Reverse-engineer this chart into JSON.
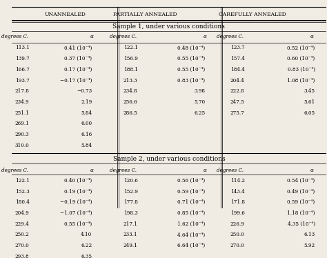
{
  "bg_color": "#f0ece4",
  "header_main": [
    "UNANNEALED",
    "PARTIALLY ANNEALED",
    "CAREFULLY ANNEALED"
  ],
  "col_headers": [
    "degrees C.",
    "α",
    "degrees C.",
    "α",
    "degrees C.",
    "α"
  ],
  "sample1_title": "Sample 1, under various conditions",
  "sample2_title": "Sample 2, under various conditions",
  "sample1": {
    "unannealed": [
      [
        "113.1",
        "0.41 (10⁻⁴)"
      ],
      [
        "139.7",
        "0.37 (10⁻⁴)"
      ],
      [
        "166.7",
        "0.17 (10⁻⁴)"
      ],
      [
        "193.7",
        "−0.17 (10⁻⁴)"
      ],
      [
        "217.8",
        "−0.73"
      ],
      [
        "234.9",
        "2.19"
      ],
      [
        "251.1",
        "5.84"
      ],
      [
        "269.1",
        "6.00"
      ],
      [
        "290.3",
        "6.16"
      ],
      [
        "310.0",
        "5.84"
      ]
    ],
    "partially": [
      [
        "122.1",
        "0.48 (10⁻⁴)"
      ],
      [
        "156.9",
        "0.55 (10⁻⁴)"
      ],
      [
        "188.1",
        "0.55 (10⁻⁴)"
      ],
      [
        "213.3",
        "0.83 (10⁻⁴)"
      ],
      [
        "234.8",
        "3.98"
      ],
      [
        "256.6",
        "5.70"
      ],
      [
        "286.5",
        "6.25"
      ]
    ],
    "carefully": [
      [
        "123.7",
        "0.52 (10⁻⁴)"
      ],
      [
        "157.4",
        "0.60 (10⁻⁴)"
      ],
      [
        "184.4",
        "0.83 (10⁻⁴)"
      ],
      [
        "204.4",
        "1.08 (10⁻⁴)"
      ],
      [
        "222.8",
        "3.45"
      ],
      [
        "247.5",
        "5.61"
      ],
      [
        "275.7",
        "6.05"
      ]
    ]
  },
  "sample2": {
    "unannealed": [
      [
        "122.1",
        "0.40 (10⁻⁴)"
      ],
      [
        "152.3",
        "0.19 (10⁻⁴)"
      ],
      [
        "180.4",
        "−0.19 (10⁻⁴)"
      ],
      [
        "204.9",
        "−1.07 (10⁻⁴)"
      ],
      [
        "229.4",
        "0.55 (10⁻⁴)"
      ],
      [
        "250.2",
        "4.10"
      ],
      [
        "270.0",
        "6.22"
      ],
      [
        "293.8",
        "6.35"
      ]
    ],
    "partially": [
      [
        "120.6",
        "0.56 (10⁻⁴)"
      ],
      [
        "152.9",
        "0.59 (10⁻⁴)"
      ],
      [
        "177.8",
        "0.71 (10⁻⁴)"
      ],
      [
        "198.3",
        "0.85 (10⁻⁴)"
      ],
      [
        "217.1",
        "1.62 (10⁻⁴)"
      ],
      [
        "233.1",
        "4.64 (10⁻⁴)"
      ],
      [
        "249.1",
        "6.64 (10⁻⁴)"
      ]
    ],
    "carefully": [
      [
        "114.2",
        "0.54 (10⁻⁴)"
      ],
      [
        "143.4",
        "0.49 (10⁻⁴)"
      ],
      [
        "171.8",
        "0.59 (10⁻⁴)"
      ],
      [
        "199.6",
        "1.18 (10⁻⁴)"
      ],
      [
        "226.9",
        "4.35 (10⁻⁴)"
      ],
      [
        "250.0",
        "6.13"
      ],
      [
        "270.0",
        "5.92"
      ]
    ]
  }
}
